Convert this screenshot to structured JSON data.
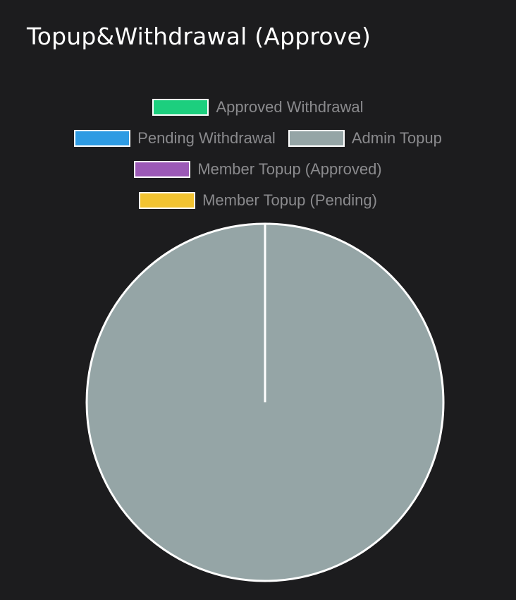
{
  "colors": {
    "background": "#1c1c1e",
    "slice_border": "#ffffff",
    "legend_text": "#8a8a8d"
  },
  "chart_data": {
    "type": "pie",
    "title": "Topup&Withdrawal (Approve)",
    "legend_position": "top",
    "series": [
      {
        "name": "Approved Withdrawal",
        "value": 0,
        "color": "#1ccf7e"
      },
      {
        "name": "Pending Withdrawal",
        "value": 0,
        "color": "#2e9be3"
      },
      {
        "name": "Admin Topup",
        "value": 100,
        "color": "#95a5a6"
      },
      {
        "name": "Member Topup (Approved)",
        "value": 0,
        "color": "#9b59b6"
      },
      {
        "name": "Member Topup (Pending)",
        "value": 0,
        "color": "#f2c331"
      }
    ]
  }
}
